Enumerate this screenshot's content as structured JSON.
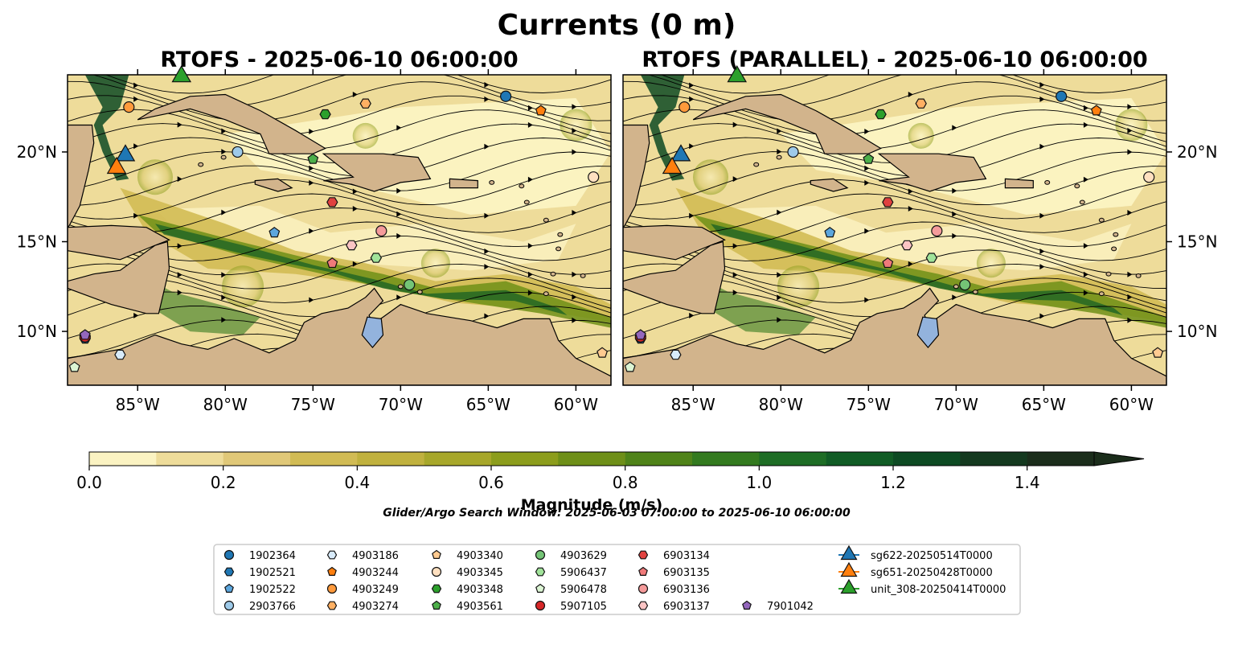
{
  "figure": {
    "title": "Currents (0 m)",
    "search_window": "Glider/Argo Search Window: 2025-06-03 07:00:00 to 2025-06-10 06:00:00"
  },
  "chart_data": [
    {
      "type": "heatmap",
      "title": "RTOFS - 2025-06-10 06:00:00",
      "xlim": [
        -89,
        -58
      ],
      "ylim": [
        7,
        24.3
      ],
      "x_ticks": [
        "85°W",
        "80°W",
        "75°W",
        "70°W",
        "65°W",
        "60°W"
      ],
      "y_ticks": [
        "10°N",
        "15°N",
        "20°N"
      ],
      "y_tick_side": "left",
      "overlay": "streamlines"
    },
    {
      "type": "heatmap",
      "title": "RTOFS (PARALLEL) - 2025-06-10 06:00:00",
      "xlim": [
        -89,
        -58
      ],
      "ylim": [
        7,
        24.3
      ],
      "x_ticks": [
        "85°W",
        "80°W",
        "75°W",
        "70°W",
        "65°W",
        "60°W"
      ],
      "y_ticks": [
        "10°N",
        "15°N",
        "20°N"
      ],
      "y_tick_side": "right",
      "overlay": "streamlines"
    }
  ],
  "colorbar": {
    "label": "Magnitude (m/s)",
    "range": [
      0.0,
      1.5
    ],
    "extend": "max",
    "tick_labels": [
      "0.0",
      "0.2",
      "0.4",
      "0.6",
      "0.8",
      "1.0",
      "1.2",
      "1.4"
    ],
    "colors": [
      "#fbf3c2",
      "#eedc9a",
      "#e0c878",
      "#d1bb54",
      "#c0b13e",
      "#a7a72a",
      "#8c9d1c",
      "#6e8f18",
      "#4f8319",
      "#337a1f",
      "#1e6d25",
      "#115c25",
      "#0d4a23",
      "#14391f",
      "#1b2d1b"
    ]
  },
  "legend": {
    "items": [
      {
        "label": "1902364",
        "marker": "circle",
        "color": "#1f77b4"
      },
      {
        "label": "1902521",
        "marker": "hexagon",
        "color": "#1f77b4"
      },
      {
        "label": "1902522",
        "marker": "pentagon",
        "color": "#5ca6dd"
      },
      {
        "label": "2903766",
        "marker": "circle",
        "color": "#9ecae9"
      },
      {
        "label": "4903186",
        "marker": "hexagon",
        "color": "#d8ebfa"
      },
      {
        "label": "4903244",
        "marker": "pentagon",
        "color": "#ff7f0e"
      },
      {
        "label": "4903249",
        "marker": "circle",
        "color": "#ff9a3c"
      },
      {
        "label": "4903274",
        "marker": "hexagon",
        "color": "#ffb063"
      },
      {
        "label": "4903340",
        "marker": "pentagon",
        "color": "#ffca90"
      },
      {
        "label": "4903345",
        "marker": "circle",
        "color": "#ffe0c0"
      },
      {
        "label": "4903348",
        "marker": "hexagon",
        "color": "#2ca02c"
      },
      {
        "label": "4903561",
        "marker": "pentagon",
        "color": "#4daf4a"
      },
      {
        "label": "4903629",
        "marker": "circle",
        "color": "#74c476"
      },
      {
        "label": "5906437",
        "marker": "hexagon",
        "color": "#a1e39a"
      },
      {
        "label": "5906478",
        "marker": "pentagon",
        "color": "#dcf5d4"
      },
      {
        "label": "5907105",
        "marker": "circle",
        "color": "#d62728"
      },
      {
        "label": "6903134",
        "marker": "hexagon",
        "color": "#e0413f"
      },
      {
        "label": "6903135",
        "marker": "pentagon",
        "color": "#f07a7a"
      },
      {
        "label": "6903136",
        "marker": "circle",
        "color": "#f59b9b"
      },
      {
        "label": "6903137",
        "marker": "hexagon",
        "color": "#fbc4c4"
      },
      {
        "label": "7901042",
        "marker": "pentagon",
        "color": "#9467bd"
      },
      {
        "label": "sg622-20250514T0000",
        "marker": "triangle",
        "color": "#1f77b4"
      },
      {
        "label": "sg651-20250428T0000",
        "marker": "triangle",
        "color": "#ff7f0e"
      },
      {
        "label": "unit_308-20250414T0000",
        "marker": "triangle",
        "color": "#2ca02c"
      }
    ]
  },
  "markers": [
    {
      "id": "1902364",
      "lon": -64.0,
      "lat": 23.1
    },
    {
      "id": "1902521",
      "lon": -88.0,
      "lat": 9.6
    },
    {
      "id": "1902522",
      "lon": -77.2,
      "lat": 15.5
    },
    {
      "id": "2903766",
      "lon": -79.3,
      "lat": 20.0
    },
    {
      "id": "4903186",
      "lon": -86.0,
      "lat": 8.7
    },
    {
      "id": "4903244",
      "lon": -62.0,
      "lat": 22.3
    },
    {
      "id": "4903249",
      "lon": -85.5,
      "lat": 22.5
    },
    {
      "id": "4903274",
      "lon": -72.0,
      "lat": 22.7
    },
    {
      "id": "4903340",
      "lon": -58.5,
      "lat": 8.8
    },
    {
      "id": "4903345",
      "lon": -59.0,
      "lat": 18.6
    },
    {
      "id": "4903348",
      "lon": -74.3,
      "lat": 22.1
    },
    {
      "id": "4903561",
      "lon": -75.0,
      "lat": 19.6
    },
    {
      "id": "4903629",
      "lon": -69.5,
      "lat": 12.6
    },
    {
      "id": "5906437",
      "lon": -71.4,
      "lat": 14.1
    },
    {
      "id": "5906478",
      "lon": -88.6,
      "lat": 8.0
    },
    {
      "id": "5907105",
      "lon": -88.0,
      "lat": 9.7
    },
    {
      "id": "6903134",
      "lon": -73.9,
      "lat": 17.2
    },
    {
      "id": "6903135",
      "lon": -73.9,
      "lat": 13.8
    },
    {
      "id": "6903136",
      "lon": -71.1,
      "lat": 15.6
    },
    {
      "id": "6903137",
      "lon": -72.8,
      "lat": 14.8
    },
    {
      "id": "7901042",
      "lon": -88.0,
      "lat": 9.8
    },
    {
      "id": "sg622-20250514T0000",
      "lon": -85.7,
      "lat": 19.8
    },
    {
      "id": "sg651-20250428T0000",
      "lon": -86.2,
      "lat": 19.1
    },
    {
      "id": "unit_308-20250414T0000",
      "lon": -82.5,
      "lat": 24.2
    }
  ]
}
